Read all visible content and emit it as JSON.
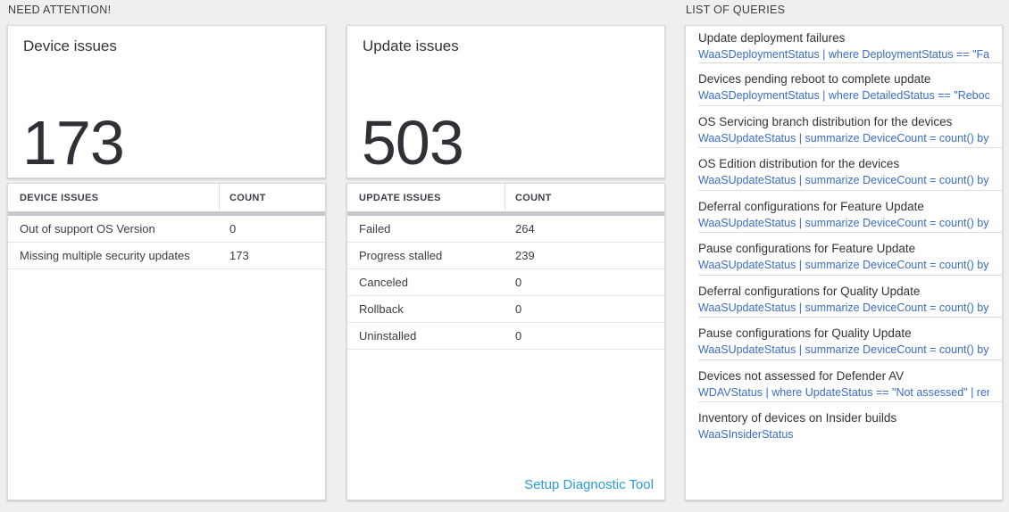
{
  "colors": {
    "page_background": "#efefef",
    "tile_background": "#ffffff",
    "query_link_blue": "#3a6dc4",
    "diagnostic_link_blue": "#2e9bd8",
    "table_header_bar_gray": "#c6c9cd",
    "dark_text": "#333333"
  },
  "sections": {
    "need_attention_label": "NEED ATTENTION!",
    "queries_label": "LIST OF QUERIES"
  },
  "device_card": {
    "title": "Device issues",
    "big_number": "173",
    "table": {
      "col1_header": "DEVICE ISSUES",
      "col2_header": "COUNT",
      "rows": [
        {
          "label": "Out of support OS Version",
          "count": "0"
        },
        {
          "label": "Missing multiple security updates",
          "count": "173"
        }
      ]
    }
  },
  "update_card": {
    "title": "Update issues",
    "big_number": "503",
    "table": {
      "col1_header": "UPDATE ISSUES",
      "col2_header": "COUNT",
      "rows": [
        {
          "label": "Failed",
          "count": "264"
        },
        {
          "label": "Progress stalled",
          "count": "239"
        },
        {
          "label": "Canceled",
          "count": "0"
        },
        {
          "label": "Rollback",
          "count": "0"
        },
        {
          "label": "Uninstalled",
          "count": "0"
        }
      ]
    },
    "footer_link": "Setup Diagnostic Tool"
  },
  "query_list": [
    {
      "title": "Update deployment failures",
      "query": "WaaSDeploymentStatus | where DeploymentStatus == \"Failed\" |..."
    },
    {
      "title": "Devices pending reboot to complete update",
      "query": "WaaSDeploymentStatus | where DetailedStatus == \"Reboot pend..."
    },
    {
      "title": "OS Servicing branch distribution for the devices",
      "query": "WaaSUpdateStatus | summarize DeviceCount = count() by OSSer..."
    },
    {
      "title": "OS Edition distribution for the devices",
      "query": "WaaSUpdateStatus | summarize DeviceCount = count() by OSEdit..."
    },
    {
      "title": "Deferral configurations for Feature Update",
      "query": "WaaSUpdateStatus | summarize DeviceCount = count() by Featur..."
    },
    {
      "title": "Pause configurations for Feature Update",
      "query": "WaaSUpdateStatus | summarize DeviceCount = count() by Featur..."
    },
    {
      "title": "Deferral configurations for Quality Update",
      "query": "WaaSUpdateStatus | summarize DeviceCount = count() by Qualit..."
    },
    {
      "title": "Pause configurations for Quality Update",
      "query": "WaaSUpdateStatus | summarize DeviceCount = count() by Qualit..."
    },
    {
      "title": "Devices not assessed for Defender AV",
      "query": "WDAVStatus | where UpdateStatus == \"Not assessed\" | render ta..."
    },
    {
      "title": "Inventory of devices on Insider builds",
      "query": "WaaSInsiderStatus"
    }
  ]
}
